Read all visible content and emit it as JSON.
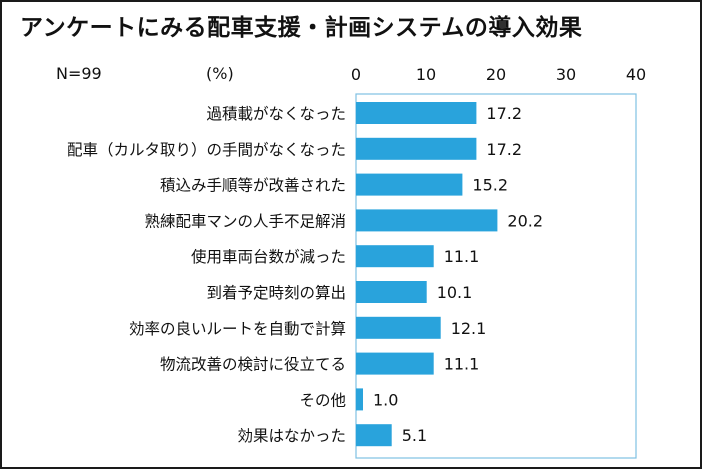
{
  "title": "アンケートにみる配車支援・計画システムの導入効果",
  "sample_size_label": "N=99",
  "unit_label": "(%)",
  "colors": {
    "bar": "#29a3dc",
    "plot_border": "#7fc0e2",
    "text": "#111111",
    "frame": "#1a1a1a"
  },
  "chart_data": {
    "type": "bar",
    "orientation": "horizontal",
    "categories": [
      "過積載がなくなった",
      "配車（カルタ取り）の手間がなくなった",
      "積込み手順等が改善された",
      "熟練配車マンの人手不足解消",
      "使用車両台数が減った",
      "到着予定時刻の算出",
      "効率の良いルートを自動で計算",
      "物流改善の検討に役立てる",
      "その他",
      "効果はなかった"
    ],
    "values": [
      17.2,
      17.2,
      15.2,
      20.2,
      11.1,
      10.1,
      12.1,
      11.1,
      1.0,
      5.1
    ],
    "value_labels": [
      "17.2",
      "17.2",
      "15.2",
      "20.2",
      "11.1",
      "10.1",
      "12.1",
      "11.1",
      "1.0",
      "5.1"
    ],
    "xlim": [
      0,
      40
    ],
    "x_ticks": [
      0,
      10,
      20,
      30,
      40
    ],
    "x_tick_labels": [
      "0",
      "10",
      "20",
      "30",
      "40"
    ],
    "xlabel": "",
    "ylabel": "",
    "grid": false,
    "legend": "none"
  }
}
